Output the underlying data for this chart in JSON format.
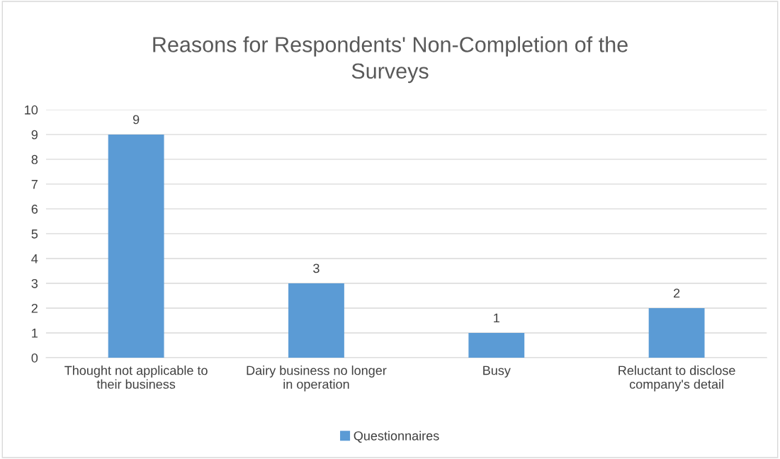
{
  "chart_data": {
    "type": "bar",
    "title": "Reasons for Respondents' Non-Completion of the\nSurveys",
    "categories": [
      "Thought not applicable to\ntheir business",
      "Dairy business no longer\nin operation",
      "Busy",
      "Reluctant to disclose\ncompany's detail"
    ],
    "series": [
      {
        "name": "Questionnaires",
        "color": "#5b9bd5",
        "values": [
          9,
          3,
          1,
          2
        ]
      }
    ],
    "ylim": [
      0,
      10
    ],
    "yticks": [
      0,
      1,
      2,
      3,
      4,
      5,
      6,
      7,
      8,
      9,
      10
    ],
    "grid": "y",
    "legend": "bottom",
    "data_labels": true
  }
}
